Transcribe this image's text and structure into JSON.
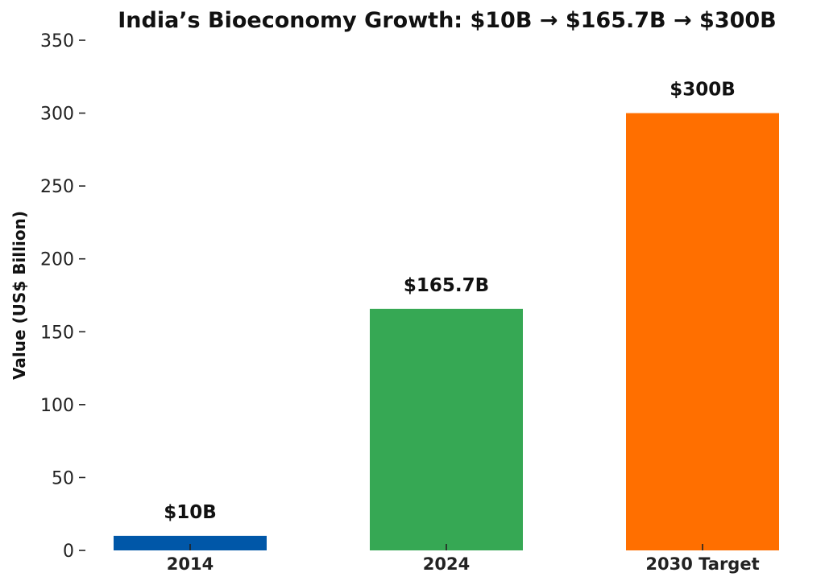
{
  "chart_data": {
    "type": "bar",
    "title": "India’s Bioeconomy Growth: $10B → $165.7B → $300B",
    "xlabel": "",
    "ylabel": "Value (US$ Billion)",
    "categories": [
      "2014",
      "2024",
      "2030 Target"
    ],
    "values": [
      10,
      165.7,
      300
    ],
    "data_labels": [
      "$10B",
      "$165.7B",
      "$300B"
    ],
    "colors": [
      "#0057a8",
      "#36a854",
      "#ff6f00"
    ],
    "ylim": [
      0,
      350
    ],
    "yticks": [
      0,
      50,
      100,
      150,
      200,
      250,
      300,
      350
    ],
    "grid": false
  }
}
